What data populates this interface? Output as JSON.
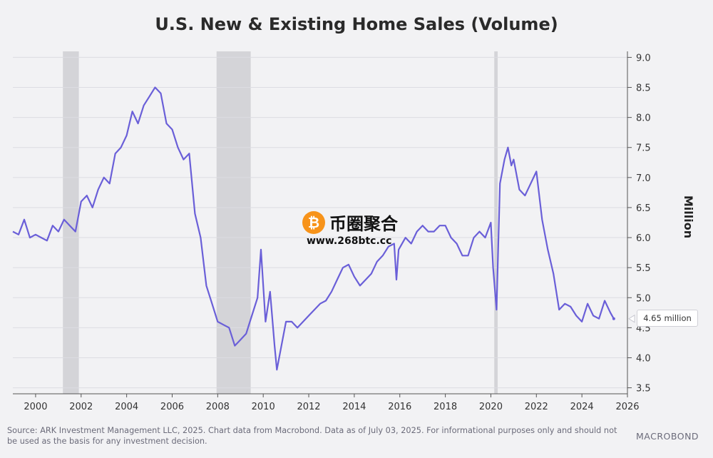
{
  "chart_data": {
    "type": "line",
    "title": "U.S. New & Existing Home Sales (Volume)",
    "ylabel": "Million",
    "ylim": [
      3.4,
      9.1
    ],
    "xlim": [
      1999.0,
      2026.0
    ],
    "y_ticks": [
      "3.5",
      "4.0",
      "4.5",
      "5.0",
      "5.5",
      "6.0",
      "6.5",
      "7.0",
      "7.5",
      "8.0",
      "8.5",
      "9.0"
    ],
    "x_ticks": [
      "2000",
      "2002",
      "2004",
      "2006",
      "2008",
      "2010",
      "2012",
      "2014",
      "2016",
      "2018",
      "2020",
      "2022",
      "2024",
      "2026"
    ],
    "line_color": "#6a5fd8",
    "recession_color": "#c9c9cf",
    "grid": true,
    "recessions": [
      [
        2001.2,
        2001.9
      ],
      [
        2007.95,
        2009.45
      ],
      [
        2020.15,
        2020.3
      ]
    ],
    "series": [
      {
        "x": [
          1999.0,
          1999.25,
          1999.5,
          1999.75,
          2000.0,
          2000.25,
          2000.5,
          2000.75,
          2001.0,
          2001.25,
          2001.5,
          2001.75,
          2002.0,
          2002.25,
          2002.5,
          2002.75,
          2003.0,
          2003.25,
          2003.5,
          2003.75,
          2004.0,
          2004.25,
          2004.5,
          2004.75,
          2005.0,
          2005.25,
          2005.5,
          2005.75,
          2006.0,
          2006.25,
          2006.5,
          2006.75,
          2007.0,
          2007.25,
          2007.5,
          2007.75,
          2008.0,
          2008.25,
          2008.5,
          2008.75,
          2009.0,
          2009.25,
          2009.5,
          2009.75,
          2009.9,
          2010.1,
          2010.3,
          2010.5,
          2010.6,
          2010.75,
          2011.0,
          2011.25,
          2011.5,
          2011.75,
          2012.0,
          2012.25,
          2012.5,
          2012.75,
          2013.0,
          2013.25,
          2013.5,
          2013.75,
          2014.0,
          2014.25,
          2014.5,
          2014.75,
          2015.0,
          2015.25,
          2015.5,
          2015.75,
          2015.85,
          2015.95,
          2016.25,
          2016.5,
          2016.75,
          2017.0,
          2017.25,
          2017.5,
          2017.75,
          2018.0,
          2018.25,
          2018.5,
          2018.75,
          2019.0,
          2019.25,
          2019.5,
          2019.75,
          2020.0,
          2020.1,
          2020.25,
          2020.4,
          2020.6,
          2020.75,
          2020.9,
          2021.0,
          2021.25,
          2021.5,
          2021.75,
          2022.0,
          2022.25,
          2022.5,
          2022.75,
          2023.0,
          2023.25,
          2023.5,
          2023.75,
          2024.0,
          2024.25,
          2024.5,
          2024.75,
          2025.0,
          2025.25,
          2025.4
        ],
        "y": [
          6.1,
          6.05,
          6.3,
          6.0,
          6.05,
          6.0,
          5.95,
          6.2,
          6.1,
          6.3,
          6.2,
          6.1,
          6.6,
          6.7,
          6.5,
          6.8,
          7.0,
          6.9,
          7.4,
          7.5,
          7.7,
          8.1,
          7.9,
          8.2,
          8.35,
          8.5,
          8.4,
          7.9,
          7.8,
          7.5,
          7.3,
          7.4,
          6.4,
          6.0,
          5.2,
          4.9,
          4.6,
          4.55,
          4.5,
          4.2,
          4.3,
          4.4,
          4.7,
          5.0,
          5.8,
          4.6,
          5.1,
          4.2,
          3.8,
          4.1,
          4.6,
          4.6,
          4.5,
          4.6,
          4.7,
          4.8,
          4.9,
          4.95,
          5.1,
          5.3,
          5.5,
          5.55,
          5.35,
          5.2,
          5.3,
          5.4,
          5.6,
          5.7,
          5.85,
          5.9,
          5.3,
          5.8,
          6.0,
          5.9,
          6.1,
          6.2,
          6.1,
          6.1,
          6.2,
          6.2,
          6.0,
          5.9,
          5.7,
          5.7,
          6.0,
          6.1,
          6.0,
          6.25,
          5.5,
          4.8,
          6.9,
          7.3,
          7.5,
          7.2,
          7.3,
          6.8,
          6.7,
          6.9,
          7.1,
          6.3,
          5.8,
          5.4,
          4.8,
          4.9,
          4.85,
          4.7,
          4.6,
          4.9,
          4.7,
          4.65,
          4.95,
          4.75,
          4.65
        ]
      }
    ],
    "last_value_label": "4.65 million"
  },
  "footer": {
    "source": "Source: ARK Investment Management LLC, 2025. Chart data from Macrobond. Data as of July 03, 2025. For informational purposes only and should not be used as the basis for any investment decision.",
    "brand": "MACROBOND"
  },
  "watermark": {
    "name": "币圈聚合",
    "url": "www.268btc.cc",
    "coin_glyph": "₿"
  }
}
